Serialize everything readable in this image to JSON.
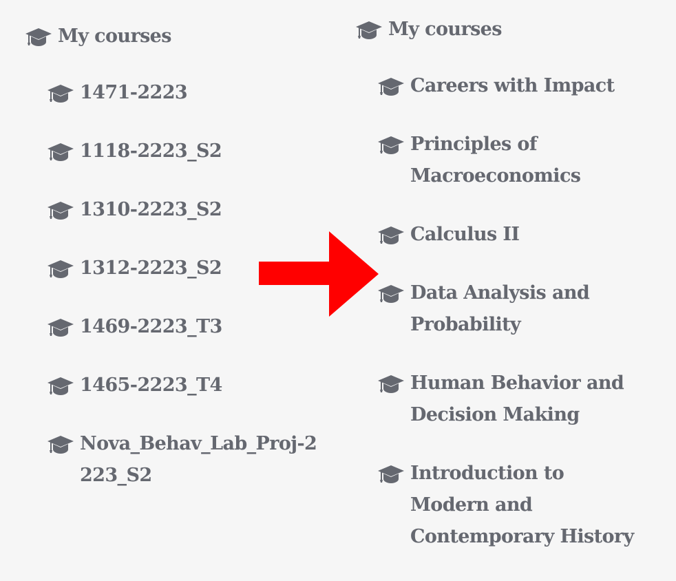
{
  "left_panel": {
    "heading": "My courses",
    "icon": "graduation-cap-icon",
    "courses": [
      "1471-2223",
      "1118-2223_S2",
      "1310-2223_S2",
      "1312-2223_S2",
      "1469-2223_T3",
      "1465-2223_T4",
      "Nova_Behav_Lab_Proj-2223_S2"
    ]
  },
  "right_panel": {
    "heading": "My courses",
    "icon": "graduation-cap-icon",
    "courses": [
      "Careers with Impact",
      "Principles of Macroeconomics",
      "Calculus II",
      "Data Analysis and Probability",
      "Human Behavior and Decision Making",
      "Introduction to Modern and Contemporary History"
    ]
  },
  "colors": {
    "background": "#f6f6f6",
    "text": "#656870",
    "arrow": "#ff0000"
  },
  "arrow_icon": "right-arrow-icon"
}
